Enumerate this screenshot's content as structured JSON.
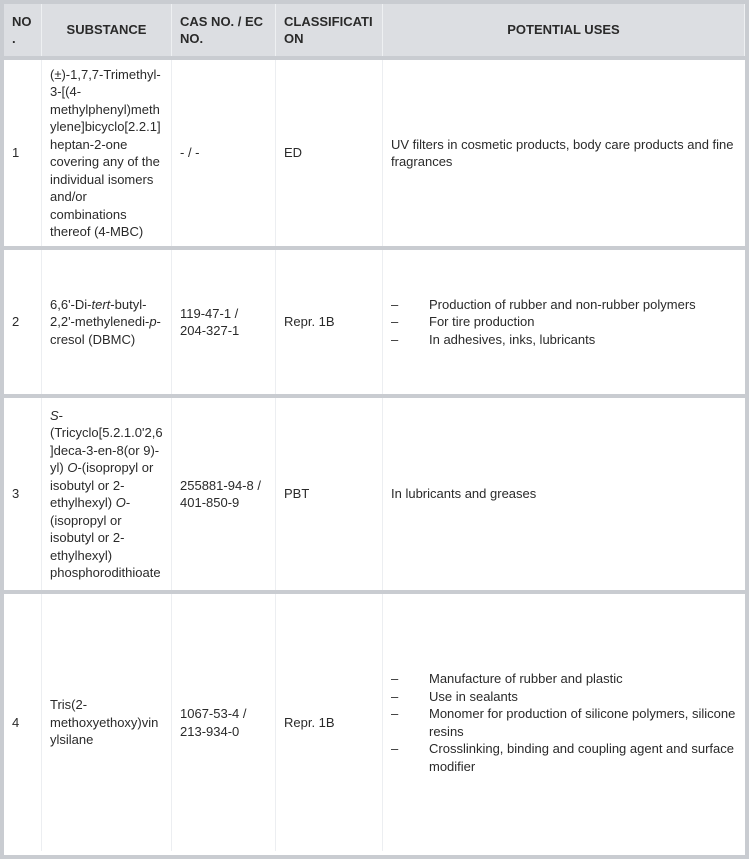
{
  "headers": [
    "NO.",
    "SUBSTANCE",
    "CAS NO. / EC NO.",
    "CLASSIFICATION",
    "POTENTIAL USES"
  ],
  "rows": [
    {
      "no": "1",
      "substance": [
        "(±)-1,7,7-Trimethyl-3-[(4-methylphenyl)methylene]bicyclo[2.2.1]heptan-2-one covering any of the individual isomers and/or combinations thereof (4-MBC)"
      ],
      "cas": "- / -",
      "classification": "ED",
      "uses": "UV filters in cosmetic products, body care products and fine fragrances"
    },
    {
      "no": "2",
      "substance": [
        "6,6'-Di-",
        "tert",
        "-butyl-2,2'-methylenedi-",
        "p",
        "-cresol (DBMC)"
      ],
      "cas": "119-47-1 / 204-327-1",
      "classification": "Repr. 1B",
      "uses_list": [
        "Production of rubber and non-rubber polymers",
        "For tire production",
        "In adhesives, inks, lubricants"
      ]
    },
    {
      "no": "3",
      "substance": [
        "S",
        "-(Tricyclo[5.2.1.0'2,6]deca-3-en-8(or 9)-yl) ",
        "O",
        "-(isopropyl or isobutyl or 2-ethylhexyl) ",
        "O",
        "-(isopropyl or isobutyl or 2-ethylhexyl) phosphorodithioate"
      ],
      "cas": "255881-94-8 / 401-850-9",
      "classification": "PBT",
      "uses": "In lubricants and greases"
    },
    {
      "no": "4",
      "substance": [
        "Tris(2-methoxyethoxy)vinylsilane"
      ],
      "cas": "1067-53-4 / 213-934-0",
      "classification": "Repr. 1B",
      "uses_list": [
        "Manufacture of rubber and plastic",
        "Use in sealants",
        "Monomer for production of silicone polymers, silicone resins",
        "Crosslinking, binding and coupling agent and surface modifier"
      ]
    }
  ],
  "list_marker": "–"
}
